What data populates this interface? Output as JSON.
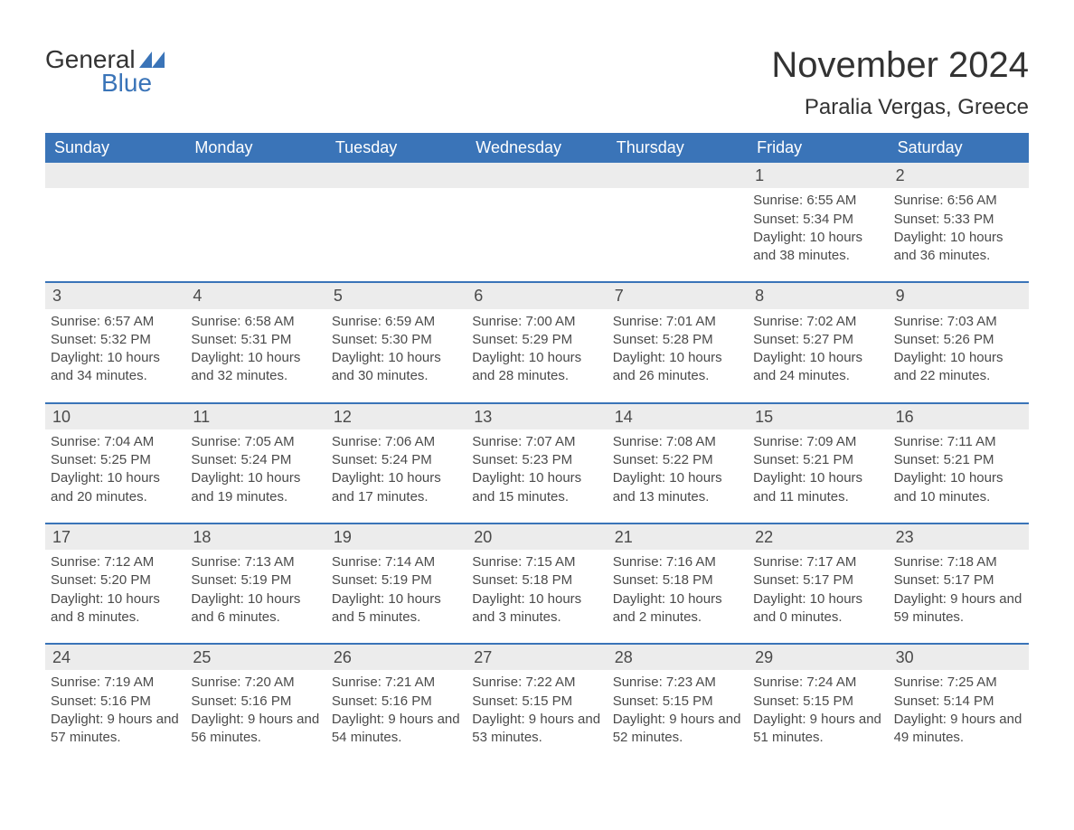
{
  "brand": {
    "general": "General",
    "blue": "Blue"
  },
  "title": "November 2024",
  "location": "Paralia Vergas, Greece",
  "colors": {
    "header_bg": "#3a74b8",
    "header_text": "#ffffff",
    "daynum_bg": "#ececec",
    "border": "#3a74b8",
    "text": "#4a4a4a",
    "background": "#ffffff"
  },
  "weekdays": [
    "Sunday",
    "Monday",
    "Tuesday",
    "Wednesday",
    "Thursday",
    "Friday",
    "Saturday"
  ],
  "weeks": [
    [
      {
        "empty": true
      },
      {
        "empty": true
      },
      {
        "empty": true
      },
      {
        "empty": true
      },
      {
        "empty": true
      },
      {
        "day": "1",
        "sunrise": "Sunrise: 6:55 AM",
        "sunset": "Sunset: 5:34 PM",
        "daylight": "Daylight: 10 hours and 38 minutes."
      },
      {
        "day": "2",
        "sunrise": "Sunrise: 6:56 AM",
        "sunset": "Sunset: 5:33 PM",
        "daylight": "Daylight: 10 hours and 36 minutes."
      }
    ],
    [
      {
        "day": "3",
        "sunrise": "Sunrise: 6:57 AM",
        "sunset": "Sunset: 5:32 PM",
        "daylight": "Daylight: 10 hours and 34 minutes."
      },
      {
        "day": "4",
        "sunrise": "Sunrise: 6:58 AM",
        "sunset": "Sunset: 5:31 PM",
        "daylight": "Daylight: 10 hours and 32 minutes."
      },
      {
        "day": "5",
        "sunrise": "Sunrise: 6:59 AM",
        "sunset": "Sunset: 5:30 PM",
        "daylight": "Daylight: 10 hours and 30 minutes."
      },
      {
        "day": "6",
        "sunrise": "Sunrise: 7:00 AM",
        "sunset": "Sunset: 5:29 PM",
        "daylight": "Daylight: 10 hours and 28 minutes."
      },
      {
        "day": "7",
        "sunrise": "Sunrise: 7:01 AM",
        "sunset": "Sunset: 5:28 PM",
        "daylight": "Daylight: 10 hours and 26 minutes."
      },
      {
        "day": "8",
        "sunrise": "Sunrise: 7:02 AM",
        "sunset": "Sunset: 5:27 PM",
        "daylight": "Daylight: 10 hours and 24 minutes."
      },
      {
        "day": "9",
        "sunrise": "Sunrise: 7:03 AM",
        "sunset": "Sunset: 5:26 PM",
        "daylight": "Daylight: 10 hours and 22 minutes."
      }
    ],
    [
      {
        "day": "10",
        "sunrise": "Sunrise: 7:04 AM",
        "sunset": "Sunset: 5:25 PM",
        "daylight": "Daylight: 10 hours and 20 minutes."
      },
      {
        "day": "11",
        "sunrise": "Sunrise: 7:05 AM",
        "sunset": "Sunset: 5:24 PM",
        "daylight": "Daylight: 10 hours and 19 minutes."
      },
      {
        "day": "12",
        "sunrise": "Sunrise: 7:06 AM",
        "sunset": "Sunset: 5:24 PM",
        "daylight": "Daylight: 10 hours and 17 minutes."
      },
      {
        "day": "13",
        "sunrise": "Sunrise: 7:07 AM",
        "sunset": "Sunset: 5:23 PM",
        "daylight": "Daylight: 10 hours and 15 minutes."
      },
      {
        "day": "14",
        "sunrise": "Sunrise: 7:08 AM",
        "sunset": "Sunset: 5:22 PM",
        "daylight": "Daylight: 10 hours and 13 minutes."
      },
      {
        "day": "15",
        "sunrise": "Sunrise: 7:09 AM",
        "sunset": "Sunset: 5:21 PM",
        "daylight": "Daylight: 10 hours and 11 minutes."
      },
      {
        "day": "16",
        "sunrise": "Sunrise: 7:11 AM",
        "sunset": "Sunset: 5:21 PM",
        "daylight": "Daylight: 10 hours and 10 minutes."
      }
    ],
    [
      {
        "day": "17",
        "sunrise": "Sunrise: 7:12 AM",
        "sunset": "Sunset: 5:20 PM",
        "daylight": "Daylight: 10 hours and 8 minutes."
      },
      {
        "day": "18",
        "sunrise": "Sunrise: 7:13 AM",
        "sunset": "Sunset: 5:19 PM",
        "daylight": "Daylight: 10 hours and 6 minutes."
      },
      {
        "day": "19",
        "sunrise": "Sunrise: 7:14 AM",
        "sunset": "Sunset: 5:19 PM",
        "daylight": "Daylight: 10 hours and 5 minutes."
      },
      {
        "day": "20",
        "sunrise": "Sunrise: 7:15 AM",
        "sunset": "Sunset: 5:18 PM",
        "daylight": "Daylight: 10 hours and 3 minutes."
      },
      {
        "day": "21",
        "sunrise": "Sunrise: 7:16 AM",
        "sunset": "Sunset: 5:18 PM",
        "daylight": "Daylight: 10 hours and 2 minutes."
      },
      {
        "day": "22",
        "sunrise": "Sunrise: 7:17 AM",
        "sunset": "Sunset: 5:17 PM",
        "daylight": "Daylight: 10 hours and 0 minutes."
      },
      {
        "day": "23",
        "sunrise": "Sunrise: 7:18 AM",
        "sunset": "Sunset: 5:17 PM",
        "daylight": "Daylight: 9 hours and 59 minutes."
      }
    ],
    [
      {
        "day": "24",
        "sunrise": "Sunrise: 7:19 AM",
        "sunset": "Sunset: 5:16 PM",
        "daylight": "Daylight: 9 hours and 57 minutes."
      },
      {
        "day": "25",
        "sunrise": "Sunrise: 7:20 AM",
        "sunset": "Sunset: 5:16 PM",
        "daylight": "Daylight: 9 hours and 56 minutes."
      },
      {
        "day": "26",
        "sunrise": "Sunrise: 7:21 AM",
        "sunset": "Sunset: 5:16 PM",
        "daylight": "Daylight: 9 hours and 54 minutes."
      },
      {
        "day": "27",
        "sunrise": "Sunrise: 7:22 AM",
        "sunset": "Sunset: 5:15 PM",
        "daylight": "Daylight: 9 hours and 53 minutes."
      },
      {
        "day": "28",
        "sunrise": "Sunrise: 7:23 AM",
        "sunset": "Sunset: 5:15 PM",
        "daylight": "Daylight: 9 hours and 52 minutes."
      },
      {
        "day": "29",
        "sunrise": "Sunrise: 7:24 AM",
        "sunset": "Sunset: 5:15 PM",
        "daylight": "Daylight: 9 hours and 51 minutes."
      },
      {
        "day": "30",
        "sunrise": "Sunrise: 7:25 AM",
        "sunset": "Sunset: 5:14 PM",
        "daylight": "Daylight: 9 hours and 49 minutes."
      }
    ]
  ]
}
